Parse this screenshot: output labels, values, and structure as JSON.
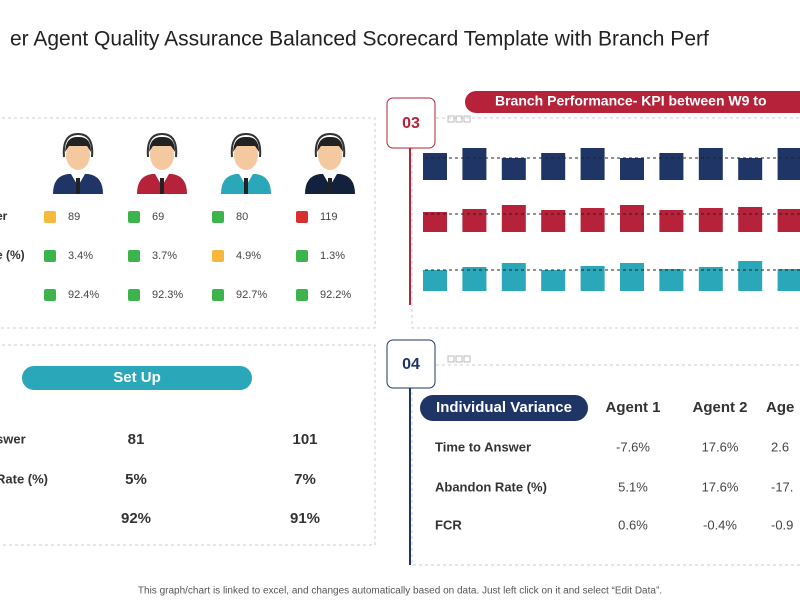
{
  "title": "er Agent Quality Assurance  Balanced Scorecard Template with Branch Perf",
  "scorecard": {
    "agent_colors": [
      "#1f3566",
      "#b5223a",
      "#2aa7b8",
      "#14213d"
    ],
    "rows": [
      {
        "label": "er",
        "values": [
          "89",
          "69",
          "80",
          "119"
        ],
        "status_colors": [
          "#f6b93b",
          "#3cb44b",
          "#3cb44b",
          "#d63031"
        ]
      },
      {
        "label": "e (%)",
        "values": [
          "3.4%",
          "3.7%",
          "4.9%",
          "1.3%"
        ],
        "status_colors": [
          "#3cb44b",
          "#3cb44b",
          "#f6b93b",
          "#3cb44b"
        ]
      },
      {
        "values": [
          "92.4%",
          "92.3%",
          "92.7%",
          "92.2%"
        ],
        "status_colors": [
          "#3cb44b",
          "#3cb44b",
          "#3cb44b",
          "#3cb44b"
        ]
      }
    ]
  },
  "setup": {
    "title": "Set Up",
    "rows": [
      {
        "label": "swer",
        "values": [
          "81",
          "101"
        ]
      },
      {
        "label": "Rate (%)",
        "values": [
          "5%",
          "7%"
        ]
      },
      {
        "values": [
          "92%",
          "91%"
        ]
      }
    ]
  },
  "branch": {
    "badge": "03",
    "title": "Branch Performance- KPI between W9 to",
    "rows": [
      {
        "color": "#1f3566",
        "values": [
          27,
          32,
          22,
          27,
          32,
          22,
          27,
          32,
          22,
          32
        ]
      },
      {
        "color": "#b5223a",
        "values": [
          20,
          23,
          27,
          22,
          24,
          27,
          22,
          24,
          25,
          23
        ]
      },
      {
        "color": "#2aa7b8",
        "values": [
          21,
          24,
          28,
          21,
          25,
          28,
          22,
          24,
          30,
          22
        ]
      }
    ]
  },
  "variance": {
    "badge": "04",
    "title": "Individual Variance",
    "columns": [
      "Agent 1",
      "Agent 2",
      "Age"
    ],
    "rows": [
      {
        "label": "Time to Answer",
        "values": [
          "-7.6%",
          "17.6%",
          "2.6"
        ]
      },
      {
        "label": "Abandon Rate (%)",
        "values": [
          "5.1%",
          "17.6%",
          "-17."
        ]
      },
      {
        "label": "FCR",
        "values": [
          "0.6%",
          "-0.4%",
          "-0.9"
        ]
      }
    ]
  },
  "footer": "This graph/chart is linked to excel, and changes automatically based on data. Just left click on it and select “Edit Data”."
}
